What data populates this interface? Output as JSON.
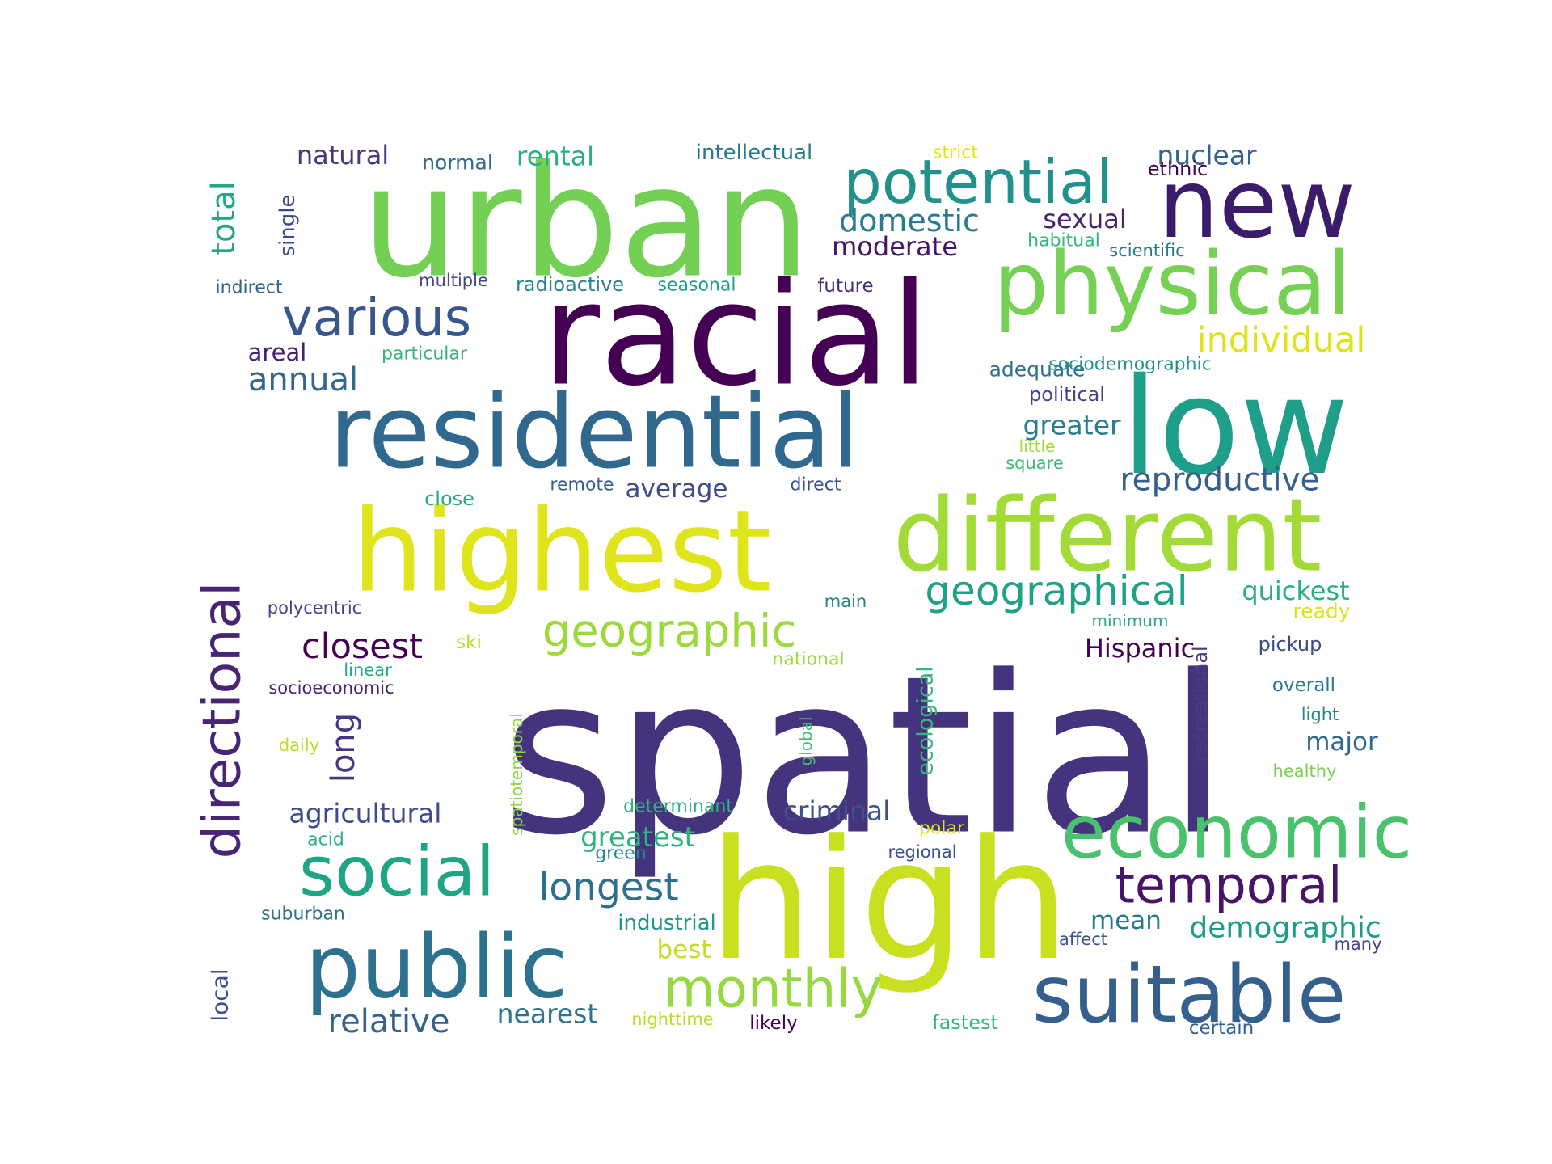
{
  "words": [
    {
      "text": "spatial",
      "color": "#46337e",
      "rotated": false
    },
    {
      "text": "high",
      "color": "#c8e020",
      "rotated": false
    },
    {
      "text": "urban",
      "color": "#73d055",
      "rotated": false
    },
    {
      "text": "racial",
      "color": "#440154",
      "rotated": false
    },
    {
      "text": "residential",
      "color": "#31688e",
      "rotated": false
    },
    {
      "text": "low",
      "color": "#1f9e89",
      "rotated": false
    },
    {
      "text": "highest",
      "color": "#e0e41c",
      "rotated": false
    },
    {
      "text": "different",
      "color": "#a2da37",
      "rotated": false
    },
    {
      "text": "new",
      "color": "#3b1c6b",
      "rotated": false
    },
    {
      "text": "physical",
      "color": "#75d054",
      "rotated": false
    },
    {
      "text": "public",
      "color": "#2c728e",
      "rotated": false
    },
    {
      "text": "suitable",
      "color": "#35608d",
      "rotated": false
    },
    {
      "text": "economic",
      "color": "#4ac16d",
      "rotated": false
    },
    {
      "text": "social",
      "color": "#20a486",
      "rotated": false
    },
    {
      "text": "potential",
      "color": "#21918c",
      "rotated": false
    },
    {
      "text": "directional",
      "color": "#482475",
      "rotated": true
    },
    {
      "text": "various",
      "color": "#39568c",
      "rotated": false
    },
    {
      "text": "monthly",
      "color": "#95d840",
      "rotated": false
    },
    {
      "text": "temporal",
      "color": "#481467",
      "rotated": false
    },
    {
      "text": "geographic",
      "color": "#9bd93c",
      "rotated": false
    },
    {
      "text": "geographical",
      "color": "#1fa187",
      "rotated": false
    },
    {
      "text": "longest",
      "color": "#2d708e",
      "rotated": false
    },
    {
      "text": "closest",
      "color": "#440154",
      "rotated": false
    },
    {
      "text": "individual",
      "color": "#dde318",
      "rotated": false
    },
    {
      "text": "reproductive",
      "color": "#355f8d",
      "rotated": false
    },
    {
      "text": "relative",
      "color": "#33638d",
      "rotated": false
    },
    {
      "text": "domestic",
      "color": "#297b8e",
      "rotated": false
    },
    {
      "text": "annual",
      "color": "#31688e",
      "rotated": false
    },
    {
      "text": "demographic",
      "color": "#1e9b8a",
      "rotated": false
    },
    {
      "text": "quickest",
      "color": "#2ab07f",
      "rotated": false
    },
    {
      "text": "nearest",
      "color": "#2c738e",
      "rotated": false
    },
    {
      "text": "agricultural",
      "color": "#3e4a89",
      "rotated": false
    },
    {
      "text": "greatest",
      "color": "#2fb47c",
      "rotated": false
    },
    {
      "text": "long",
      "color": "#453781",
      "rotated": true
    },
    {
      "text": "nuclear",
      "color": "#33638d",
      "rotated": false
    },
    {
      "text": "criminal",
      "color": "#3b528b",
      "rotated": false
    },
    {
      "text": "rental",
      "color": "#29af7f",
      "rotated": false
    },
    {
      "text": "natural",
      "color": "#443a83",
      "rotated": false
    },
    {
      "text": "total",
      "color": "#22a884",
      "rotated": true
    },
    {
      "text": "moderate",
      "color": "#481467",
      "rotated": false
    },
    {
      "text": "sexual",
      "color": "#482173",
      "rotated": false
    },
    {
      "text": "greater",
      "color": "#27808e",
      "rotated": false
    },
    {
      "text": "average",
      "color": "#3e4a89",
      "rotated": false
    },
    {
      "text": "Hispanic",
      "color": "#440154",
      "rotated": false
    },
    {
      "text": "best",
      "color": "#bddf26",
      "rotated": false
    },
    {
      "text": "major",
      "color": "#31688e",
      "rotated": false
    },
    {
      "text": "mean",
      "color": "#2a788e",
      "rotated": false
    },
    {
      "text": "areal",
      "color": "#481f70",
      "rotated": false
    },
    {
      "text": "local",
      "color": "#3b528b",
      "rotated": true
    },
    {
      "text": "single",
      "color": "#3e4a89",
      "rotated": true
    },
    {
      "text": "ecological",
      "color": "#35b779",
      "rotated": true
    },
    {
      "text": "recreational",
      "color": "#433e85",
      "rotated": true
    },
    {
      "text": "intellectual",
      "color": "#2a788e",
      "rotated": false
    },
    {
      "text": "industrial",
      "color": "#1f9a8a",
      "rotated": false
    },
    {
      "text": "adequate",
      "color": "#2c728e",
      "rotated": false
    },
    {
      "text": "political",
      "color": "#414487",
      "rotated": false
    },
    {
      "text": "normal",
      "color": "#31688e",
      "rotated": false
    },
    {
      "text": "radioactive",
      "color": "#26828e",
      "rotated": false
    },
    {
      "text": "multiple",
      "color": "#3e4a89",
      "rotated": false
    },
    {
      "text": "seasonal",
      "color": "#1f9e89",
      "rotated": false
    },
    {
      "text": "future",
      "color": "#482878",
      "rotated": false
    },
    {
      "text": "indirect",
      "color": "#33638d",
      "rotated": false
    },
    {
      "text": "particular",
      "color": "#34b679",
      "rotated": false
    },
    {
      "text": "sociodemographic",
      "color": "#21918c",
      "rotated": false
    },
    {
      "text": "scientific",
      "color": "#2a788e",
      "rotated": false
    },
    {
      "text": "habitual",
      "color": "#35b779",
      "rotated": false
    },
    {
      "text": "ethnic",
      "color": "#440154",
      "rotated": false
    },
    {
      "text": "strict",
      "color": "#e2e418",
      "rotated": false
    },
    {
      "text": "little",
      "color": "#a5db36",
      "rotated": false
    },
    {
      "text": "square",
      "color": "#3bbb75",
      "rotated": false
    },
    {
      "text": "remote",
      "color": "#365c8d",
      "rotated": false
    },
    {
      "text": "direct",
      "color": "#3b528b",
      "rotated": false
    },
    {
      "text": "close",
      "color": "#25ac82",
      "rotated": false
    },
    {
      "text": "polycentric",
      "color": "#414487",
      "rotated": false
    },
    {
      "text": "main",
      "color": "#25848e",
      "rotated": false
    },
    {
      "text": "minimum",
      "color": "#22a785",
      "rotated": false
    },
    {
      "text": "ready",
      "color": "#dde318",
      "rotated": false
    },
    {
      "text": "pickup",
      "color": "#3e4a89",
      "rotated": false
    },
    {
      "text": "overall",
      "color": "#2a788e",
      "rotated": false
    },
    {
      "text": "light",
      "color": "#23888e",
      "rotated": false
    },
    {
      "text": "healthy",
      "color": "#7ad151",
      "rotated": false
    },
    {
      "text": "ski",
      "color": "#b5de2b",
      "rotated": false
    },
    {
      "text": "linear",
      "color": "#22a884",
      "rotated": false
    },
    {
      "text": "national",
      "color": "#9fda3a",
      "rotated": false
    },
    {
      "text": "socioeconomic",
      "color": "#482173",
      "rotated": false
    },
    {
      "text": "daily",
      "color": "#b8de29",
      "rotated": false
    },
    {
      "text": "spatiotemporal",
      "color": "#8ed645",
      "rotated": true
    },
    {
      "text": "global",
      "color": "#44bf70",
      "rotated": true
    },
    {
      "text": "determinant",
      "color": "#2db27d",
      "rotated": false
    },
    {
      "text": "polar",
      "color": "#dde318",
      "rotated": false
    },
    {
      "text": "regional",
      "color": "#3b528b",
      "rotated": false
    },
    {
      "text": "acid",
      "color": "#2ab07f",
      "rotated": false
    },
    {
      "text": "green",
      "color": "#238a8d",
      "rotated": false
    },
    {
      "text": "suburban",
      "color": "#2c728e",
      "rotated": false
    },
    {
      "text": "affect",
      "color": "#3b528b",
      "rotated": false
    },
    {
      "text": "many",
      "color": "#404688",
      "rotated": false
    },
    {
      "text": "nighttime",
      "color": "#b8de29",
      "rotated": false
    },
    {
      "text": "likely",
      "color": "#440154",
      "rotated": false
    },
    {
      "text": "fastest",
      "color": "#35b779",
      "rotated": false
    },
    {
      "text": "certain",
      "color": "#33638d",
      "rotated": false
    }
  ]
}
